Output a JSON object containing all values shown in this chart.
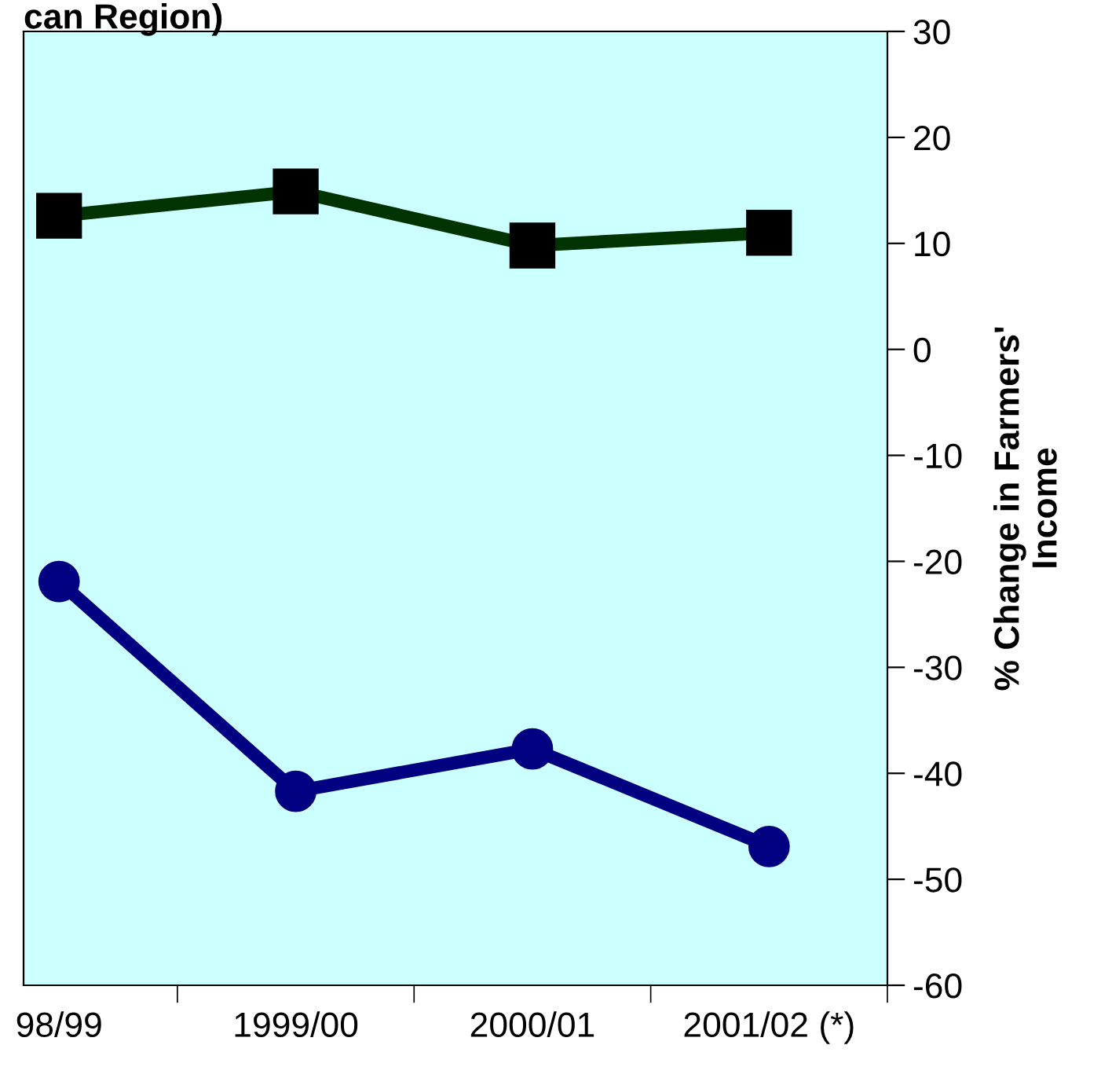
{
  "chart_data": {
    "type": "line",
    "title": "can Region)",
    "y2label": "% Change in Farmers'\nIncome",
    "categories": [
      "98/99",
      "1999/00",
      "2000/01",
      "2001/02 (*)"
    ],
    "series": [
      {
        "color": "#003300",
        "values": [
          12.6,
          14.9,
          9.8,
          11
        ],
        "marker": "square",
        "axis": "y2"
      },
      {
        "color": "#000080",
        "values": [
          -21.9,
          -41.7,
          -37.7,
          -46.9
        ],
        "marker": "circle",
        "axis": "y2"
      }
    ],
    "y2lim": [
      -60,
      30
    ],
    "y2ticks": [
      -60,
      -50,
      -40,
      -30,
      -20,
      -10,
      0,
      10,
      20,
      30
    ],
    "grid": false
  }
}
